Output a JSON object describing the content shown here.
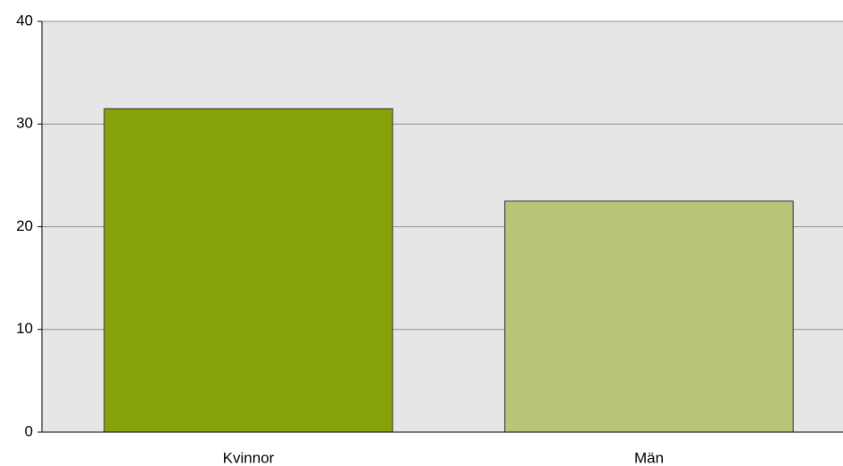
{
  "chart_data": {
    "type": "bar",
    "categories": [
      "Kvinnor",
      "Män"
    ],
    "values": [
      31.5,
      22.5
    ],
    "colors": [
      "#87a30a",
      "#b8c67a"
    ],
    "ylim": [
      0,
      40
    ],
    "yticks": [
      0,
      10,
      20,
      30,
      40
    ],
    "grid": true
  }
}
